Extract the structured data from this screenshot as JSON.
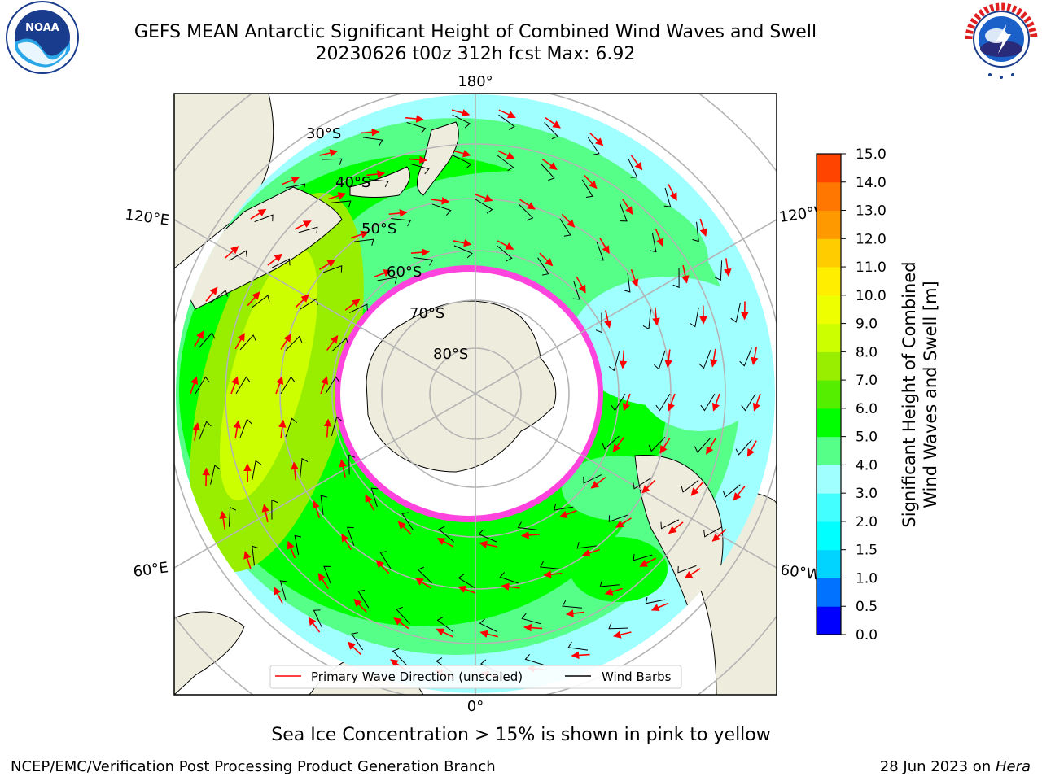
{
  "header": {
    "title_line1": "GEFS MEAN Antarctic Significant Height of Combined Wind Waves and Swell",
    "title_line2": "20230626 t00z 312h fcst   Max: 6.92"
  },
  "logos": {
    "left": {
      "text": "NOAA",
      "ring_text": "NATIONAL OCEANIC AND ATMOSPHERIC ADMINISTRATION · U.S. DEPARTMENT OF COMMERCE"
    },
    "right": {
      "ring_text": "NATIONAL WEATHER SERVICE"
    }
  },
  "map": {
    "projection": "south-polar-stereographic",
    "lon_labels": {
      "top": "180°",
      "bottom": "0°",
      "upper_left": "120°E",
      "lower_left": "60°E",
      "upper_right": "120°W",
      "lower_right": "60°W"
    },
    "lat_labels": [
      "30°S",
      "40°S",
      "50°S",
      "60°S",
      "70°S",
      "80°S"
    ],
    "legend": {
      "primary": "Primary Wave Direction (unscaled)",
      "barbs": "Wind Barbs"
    },
    "colors": {
      "land": "#eeecdc",
      "ice": "#ffffff",
      "ice_edge": "#ff44dd",
      "arrow": "#ff0000",
      "barb": "#000000",
      "grid": "#b4b4b4"
    }
  },
  "colorbar": {
    "label_line1": "Significant Height of Combined",
    "label_line2": "Wind Waves and Swell [m]",
    "ticks": [
      "15.0",
      "14.0",
      "13.0",
      "12.0",
      "11.0",
      "10.0",
      "9.0",
      "8.0",
      "7.0",
      "6.0",
      "5.0",
      "4.0",
      "3.0",
      "2.0",
      "1.5",
      "1.0",
      "0.5",
      "0.0"
    ],
    "colors": [
      "#0000ff",
      "#0072ff",
      "#00d4ff",
      "#00ffff",
      "#44ffff",
      "#a0ffff",
      "#55ff88",
      "#00ff00",
      "#55ee00",
      "#99ee00",
      "#ccff00",
      "#eeff00",
      "#ffee00",
      "#ffcc00",
      "#ff9900",
      "#ff7700",
      "#ff4400",
      "#ff2200",
      "#ff0000"
    ]
  },
  "note": "Sea Ice Concentration > 15% is shown in pink to yellow",
  "footer": {
    "left": "NCEP/EMC/Verification Post Processing Product Generation Branch",
    "right_date": "28 Jun 2023 on ",
    "right_host": "Hera"
  }
}
